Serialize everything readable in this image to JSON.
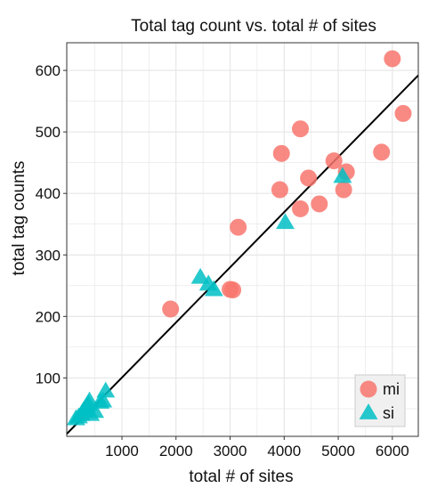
{
  "chart_data": {
    "type": "scatter",
    "title": "Total tag count vs. total # of sites",
    "xlabel": "total # of sites",
    "ylabel": "total tag counts",
    "xlim": [
      -20,
      6480
    ],
    "ylim": [
      5,
      645
    ],
    "x_ticks": [
      1000,
      2000,
      3000,
      4000,
      5000,
      6000
    ],
    "y_ticks": [
      100,
      200,
      300,
      400,
      500,
      600
    ],
    "grid": true,
    "legend_position": "bottom-right",
    "colors": {
      "mi": "#F8766D",
      "si": "#00BFC4",
      "fit_line": "#000000",
      "grid": "#e5e5e5",
      "panel_border": "#333333"
    },
    "series": [
      {
        "name": "mi",
        "marker": "circle",
        "points": [
          {
            "x": 1900,
            "y": 212
          },
          {
            "x": 3000,
            "y": 244
          },
          {
            "x": 3050,
            "y": 243
          },
          {
            "x": 3150,
            "y": 345
          },
          {
            "x": 3950,
            "y": 465
          },
          {
            "x": 3920,
            "y": 406
          },
          {
            "x": 4300,
            "y": 505
          },
          {
            "x": 4300,
            "y": 375
          },
          {
            "x": 4450,
            "y": 425
          },
          {
            "x": 4650,
            "y": 383
          },
          {
            "x": 4920,
            "y": 453
          },
          {
            "x": 5100,
            "y": 406
          },
          {
            "x": 5150,
            "y": 435
          },
          {
            "x": 5800,
            "y": 467
          },
          {
            "x": 6000,
            "y": 619
          },
          {
            "x": 6200,
            "y": 530
          }
        ]
      },
      {
        "name": "si",
        "marker": "triangle",
        "points": [
          {
            "x": 150,
            "y": 33
          },
          {
            "x": 200,
            "y": 36
          },
          {
            "x": 250,
            "y": 40
          },
          {
            "x": 280,
            "y": 45
          },
          {
            "x": 320,
            "y": 50
          },
          {
            "x": 350,
            "y": 53
          },
          {
            "x": 380,
            "y": 57
          },
          {
            "x": 400,
            "y": 62
          },
          {
            "x": 420,
            "y": 40
          },
          {
            "x": 500,
            "y": 45
          },
          {
            "x": 600,
            "y": 60
          },
          {
            "x": 650,
            "y": 62
          },
          {
            "x": 700,
            "y": 78
          },
          {
            "x": 2450,
            "y": 263
          },
          {
            "x": 2600,
            "y": 252
          },
          {
            "x": 2700,
            "y": 243
          },
          {
            "x": 4020,
            "y": 352
          },
          {
            "x": 5080,
            "y": 427
          }
        ]
      }
    ],
    "fit_line": {
      "x": [
        -20,
        6480
      ],
      "y": [
        9,
        592
      ]
    }
  }
}
